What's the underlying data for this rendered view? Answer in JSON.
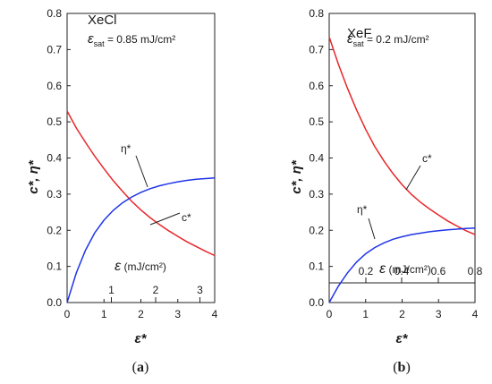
{
  "chart_data": [
    {
      "type": "line",
      "panel_label": "(a)",
      "title": "XeCl",
      "annotation": {
        "symbol": "ε",
        "sub": "sat",
        "text": " = 0.85 mJ/cm²"
      },
      "xlabel": "ε*",
      "ylabel": "c*, η*",
      "xlim": [
        0,
        4
      ],
      "ylim": [
        0,
        0.8
      ],
      "xticks": [
        "0",
        "1",
        "2",
        "3",
        "4"
      ],
      "yticks": [
        "0.0",
        "0.1",
        "0.2",
        "0.3",
        "0.4",
        "0.5",
        "0.6",
        "0.7",
        "0.8"
      ],
      "secondary_axis": {
        "label": "ε (mJ/cm²)",
        "ticks": [
          "1",
          "2",
          "3"
        ]
      },
      "series": [
        {
          "name": "c*",
          "color": "#e8262a",
          "x": [
            0,
            0.25,
            0.5,
            0.75,
            1.0,
            1.25,
            1.5,
            1.75,
            2.0,
            2.25,
            2.5,
            2.75,
            3.0,
            3.25,
            3.5,
            3.75,
            4.0
          ],
          "y": [
            0.53,
            0.483,
            0.443,
            0.405,
            0.37,
            0.337,
            0.308,
            0.28,
            0.256,
            0.235,
            0.216,
            0.199,
            0.183,
            0.168,
            0.155,
            0.142,
            0.13
          ]
        },
        {
          "name": "η*",
          "color": "#1f35e6",
          "x": [
            0,
            0.25,
            0.5,
            0.75,
            1.0,
            1.25,
            1.5,
            1.75,
            2.0,
            2.25,
            2.5,
            2.75,
            3.0,
            3.25,
            3.5,
            3.75,
            4.0
          ],
          "y": [
            0.0,
            0.082,
            0.145,
            0.193,
            0.228,
            0.255,
            0.276,
            0.292,
            0.305,
            0.315,
            0.323,
            0.329,
            0.334,
            0.338,
            0.341,
            0.343,
            0.345
          ]
        }
      ],
      "labels": [
        "c*",
        "η*"
      ]
    },
    {
      "type": "line",
      "panel_label": "(b)",
      "title": "XeF",
      "annotation": {
        "symbol": "ε",
        "sub": "sat",
        "text": " = 0.2 mJ/cm²"
      },
      "xlabel": "ε*",
      "ylabel": "c*, η*",
      "xlim": [
        0,
        4
      ],
      "ylim": [
        0,
        0.8
      ],
      "xticks": [
        "0",
        "1",
        "2",
        "3",
        "4"
      ],
      "yticks": [
        "0.0",
        "0.1",
        "0.2",
        "0.3",
        "0.4",
        "0.5",
        "0.6",
        "0.7",
        "0.8"
      ],
      "secondary_axis": {
        "label": "ε (mJ/cm²)",
        "ticks": [
          "0.2",
          "0.4",
          "0.6",
          "0.8"
        ]
      },
      "series": [
        {
          "name": "c*",
          "color": "#e8262a",
          "x": [
            0,
            0.25,
            0.5,
            0.75,
            1.0,
            1.25,
            1.5,
            1.75,
            2.0,
            2.25,
            2.5,
            2.75,
            3.0,
            3.25,
            3.5,
            3.75,
            4.0
          ],
          "y": [
            0.735,
            0.66,
            0.593,
            0.533,
            0.479,
            0.432,
            0.392,
            0.357,
            0.326,
            0.3,
            0.278,
            0.259,
            0.242,
            0.226,
            0.212,
            0.199,
            0.188
          ]
        },
        {
          "name": "η*",
          "color": "#1f35e6",
          "x": [
            0,
            0.25,
            0.5,
            0.75,
            1.0,
            1.25,
            1.5,
            1.75,
            2.0,
            2.25,
            2.5,
            2.75,
            3.0,
            3.25,
            3.5,
            3.75,
            4.0
          ],
          "y": [
            0.0,
            0.045,
            0.082,
            0.112,
            0.135,
            0.152,
            0.165,
            0.175,
            0.182,
            0.188,
            0.192,
            0.196,
            0.199,
            0.201,
            0.203,
            0.205,
            0.206
          ]
        }
      ],
      "labels": [
        "c*",
        "η*"
      ]
    }
  ]
}
